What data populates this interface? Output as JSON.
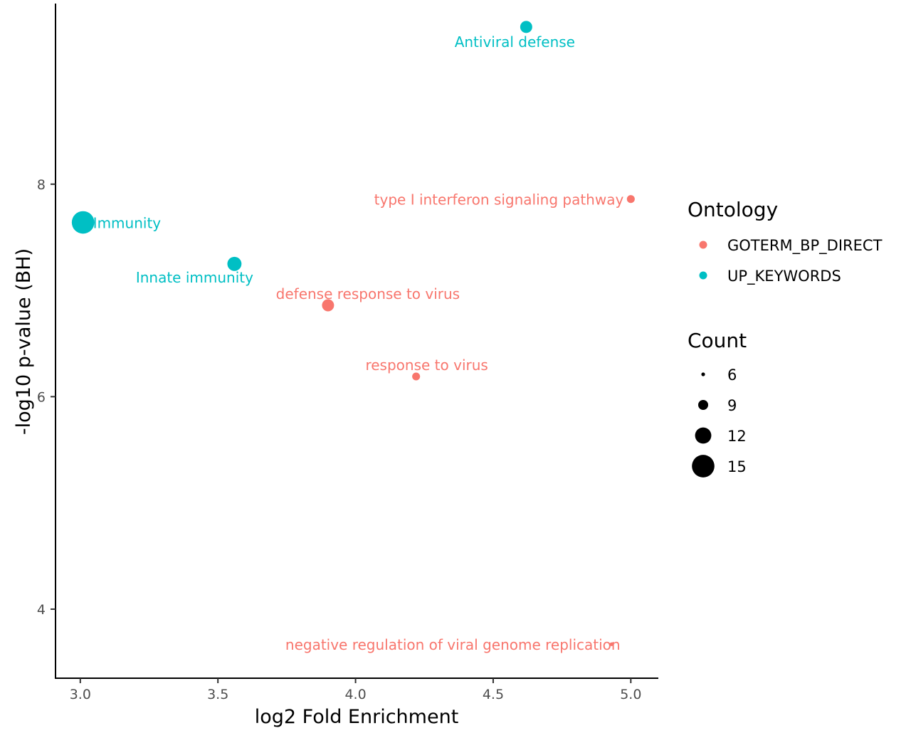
{
  "chart_data": {
    "type": "scatter",
    "xlabel": "log2 Fold Enrichment",
    "ylabel": "-log10 p-value (BH)",
    "xlim": [
      2.91,
      5.1
    ],
    "ylim": [
      3.35,
      9.7
    ],
    "x_ticks": [
      3.0,
      3.5,
      4.0,
      4.5,
      5.0
    ],
    "x_tick_labels": [
      "3.0",
      "3.5",
      "4.0",
      "4.5",
      "5.0"
    ],
    "y_ticks": [
      4,
      6,
      8
    ],
    "y_tick_labels": [
      "4",
      "6",
      "8"
    ],
    "grid": false,
    "legend_position": "right",
    "color_legend": {
      "title": "Ontology",
      "entries": [
        {
          "label": "GOTERM_BP_DIRECT",
          "color": "#F8766D"
        },
        {
          "label": "UP_KEYWORDS",
          "color": "#00BFC4"
        }
      ]
    },
    "size_legend": {
      "title": "Count",
      "entries": [
        {
          "label": "6",
          "value": 6
        },
        {
          "label": "9",
          "value": 9
        },
        {
          "label": "12",
          "value": 12
        },
        {
          "label": "15",
          "value": 15
        }
      ]
    },
    "series": [
      {
        "name": "GOTERM_BP_DIRECT",
        "color": "#F8766D",
        "points": [
          {
            "label": "type I interferon signaling pathway",
            "x": 5.0,
            "y": 7.86,
            "count": 8
          },
          {
            "label": "defense response to virus",
            "x": 3.9,
            "y": 6.86,
            "count": 10
          },
          {
            "label": "response to virus",
            "x": 4.22,
            "y": 6.19,
            "count": 8
          },
          {
            "label": "negative regulation of viral genome replication",
            "x": 4.93,
            "y": 3.67,
            "count": 6
          }
        ]
      },
      {
        "name": "UP_KEYWORDS",
        "color": "#00BFC4",
        "points": [
          {
            "label": "Antiviral defense",
            "x": 4.62,
            "y": 9.48,
            "count": 10
          },
          {
            "label": "Immunity",
            "x": 3.01,
            "y": 7.64,
            "count": 15
          },
          {
            "label": "Innate immunity",
            "x": 3.56,
            "y": 7.25,
            "count": 11
          }
        ]
      }
    ]
  }
}
